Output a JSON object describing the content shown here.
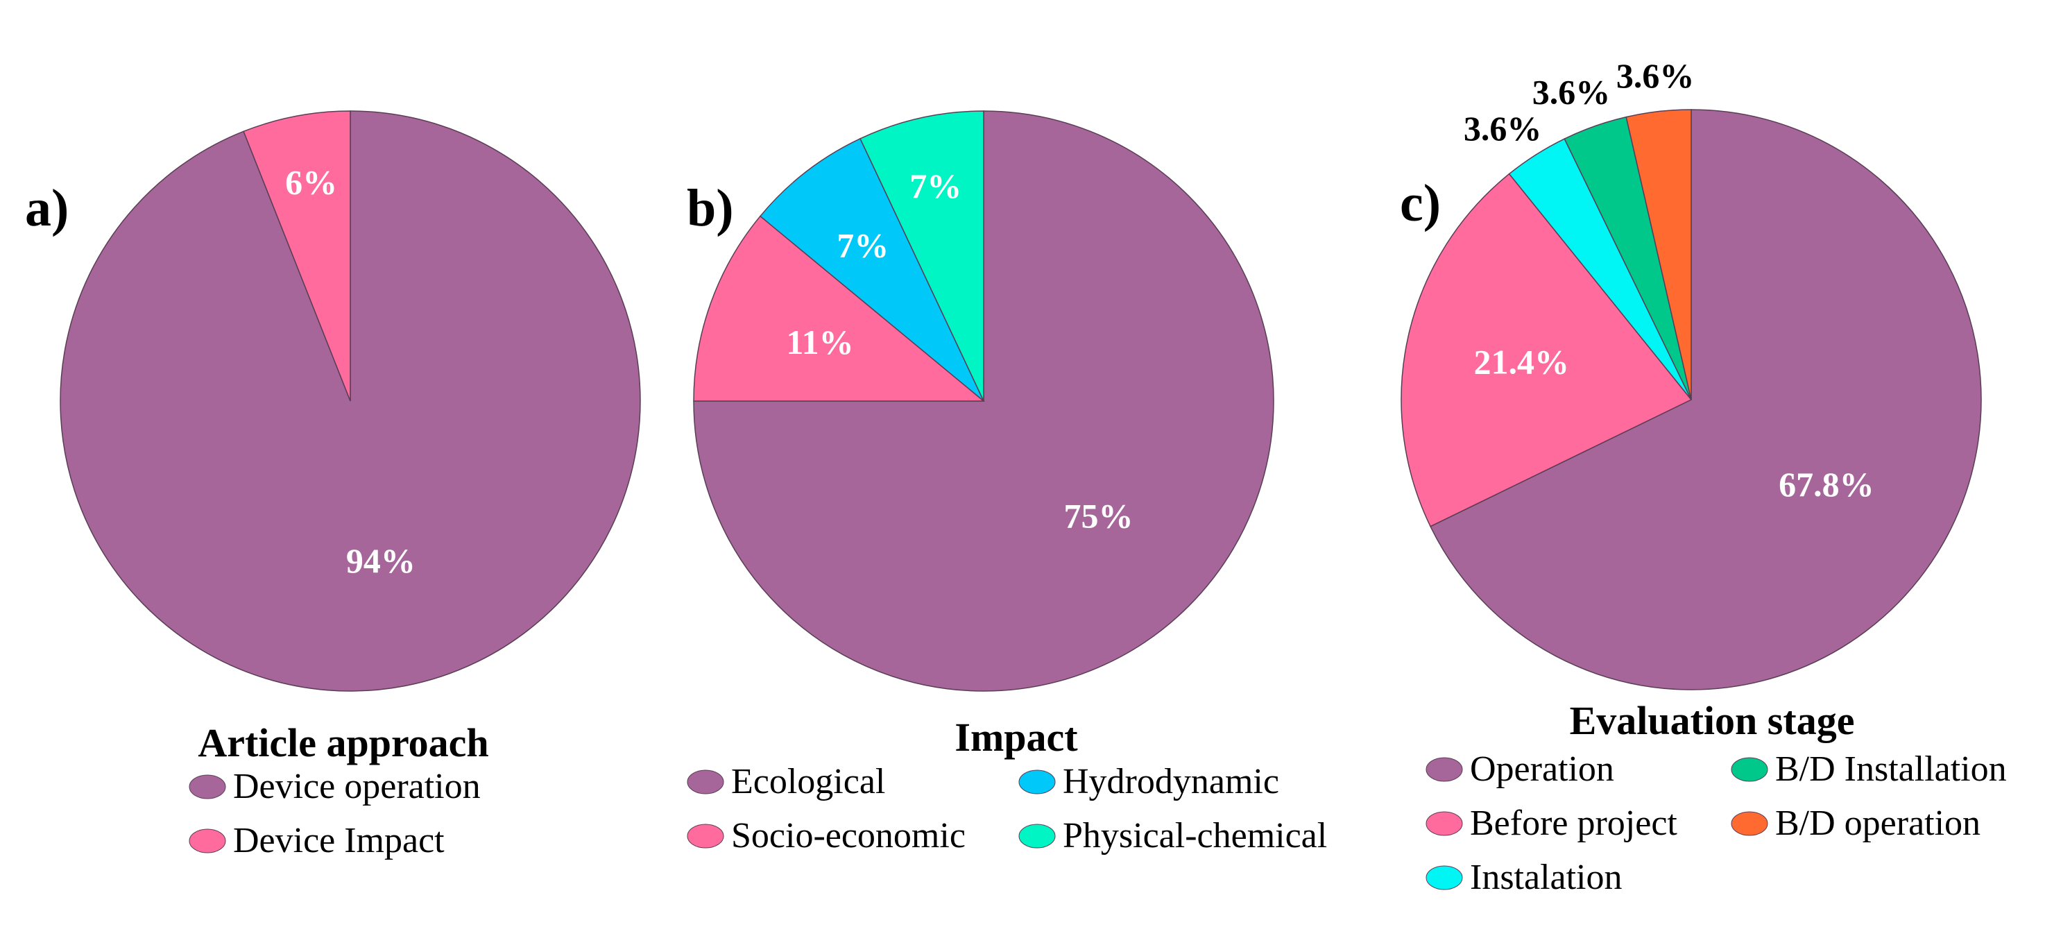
{
  "chart_data": [
    {
      "type": "pie",
      "panel": "a)",
      "title": "Article approach",
      "slices": [
        {
          "label": "Device operation",
          "value": 94,
          "display": "94%",
          "color": "#a6669a"
        },
        {
          "label": "Device Impact",
          "value": 6,
          "display": "6%",
          "color": "#ff6b9d"
        }
      ]
    },
    {
      "type": "pie",
      "panel": "b)",
      "title": "Impact",
      "slices": [
        {
          "label": "Ecological",
          "value": 75,
          "display": "75%",
          "color": "#a6669a"
        },
        {
          "label": "Socio-economic",
          "value": 11,
          "display": "11%",
          "color": "#ff6b9d"
        },
        {
          "label": "Hydrodynamic",
          "value": 7,
          "display": "7%",
          "color": "#00c8f8"
        },
        {
          "label": "Physical-chemical",
          "value": 7,
          "display": "7%",
          "color": "#00f5c4"
        }
      ]
    },
    {
      "type": "pie",
      "panel": "c)",
      "title": "Evaluation stage",
      "slices": [
        {
          "label": "Operation",
          "value": 67.8,
          "display": "67.8%",
          "color": "#a6669a"
        },
        {
          "label": "Before project",
          "value": 21.4,
          "display": "21.4%",
          "color": "#ff6b9d"
        },
        {
          "label": "Instalation",
          "value": 3.6,
          "display": "3.6%",
          "color": "#00f5f5"
        },
        {
          "label": "B/D Installation",
          "value": 3.6,
          "display": "3.6%",
          "color": "#00c88a"
        },
        {
          "label": "B/D operation",
          "value": 3.6,
          "display": "3.6%",
          "color": "#ff6a30"
        }
      ]
    }
  ]
}
